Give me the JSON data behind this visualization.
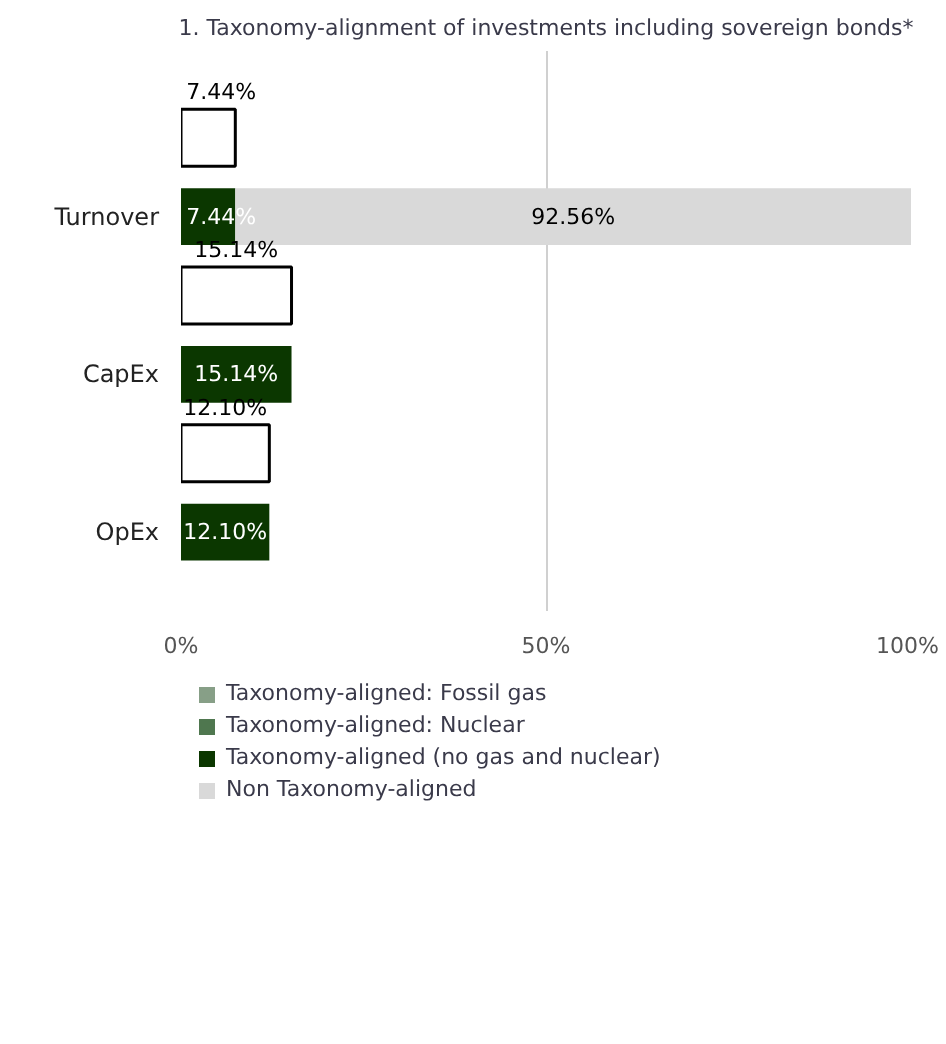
{
  "chart_data": {
    "type": "bar",
    "orientation": "horizontal",
    "stacked": true,
    "title": "1. Taxonomy-alignment of investments including sovereign bonds*",
    "categories": [
      null,
      "Turnover",
      null,
      "CapEx",
      null,
      "OpEx"
    ],
    "series": [
      {
        "color": "#ffffff",
        "values": [
          7.44,
          null,
          15.14,
          null,
          12.1,
          null
        ],
        "value_labels": [
          "7.44%",
          null,
          "15.14%",
          null,
          "12.10%",
          null
        ]
      },
      {
        "name": "Taxonomy-aligned: Fossil gas",
        "color": "#879f87",
        "values": [
          null,
          0,
          null,
          0,
          null,
          0
        ]
      },
      {
        "name": "Taxonomy-aligned: Nuclear",
        "color": "#4f774f",
        "values": [
          null,
          0,
          null,
          0,
          null,
          0
        ]
      },
      {
        "name": "Taxonomy-aligned (no gas and nuclear)",
        "color": "#0b3700",
        "values": [
          null,
          7.44,
          null,
          15.14,
          null,
          12.1
        ],
        "value_labels": [
          null,
          "7.44%",
          null,
          "15.14%",
          null,
          "12.10%"
        ]
      },
      {
        "name": "Non Taxonomy-aligned",
        "color": "#d9d9d9",
        "values": [
          null,
          92.56,
          null,
          null,
          null,
          null
        ],
        "value_labels": [
          null,
          "92.56%",
          null,
          null,
          null,
          null
        ]
      }
    ],
    "xlim": [
      0,
      100
    ],
    "xticks": [
      {
        "value": 0,
        "label": "0%"
      },
      {
        "value": 50,
        "label": "50%"
      },
      {
        "value": 100,
        "label": "100%"
      }
    ],
    "grid": "x",
    "legend": "bottom left"
  }
}
